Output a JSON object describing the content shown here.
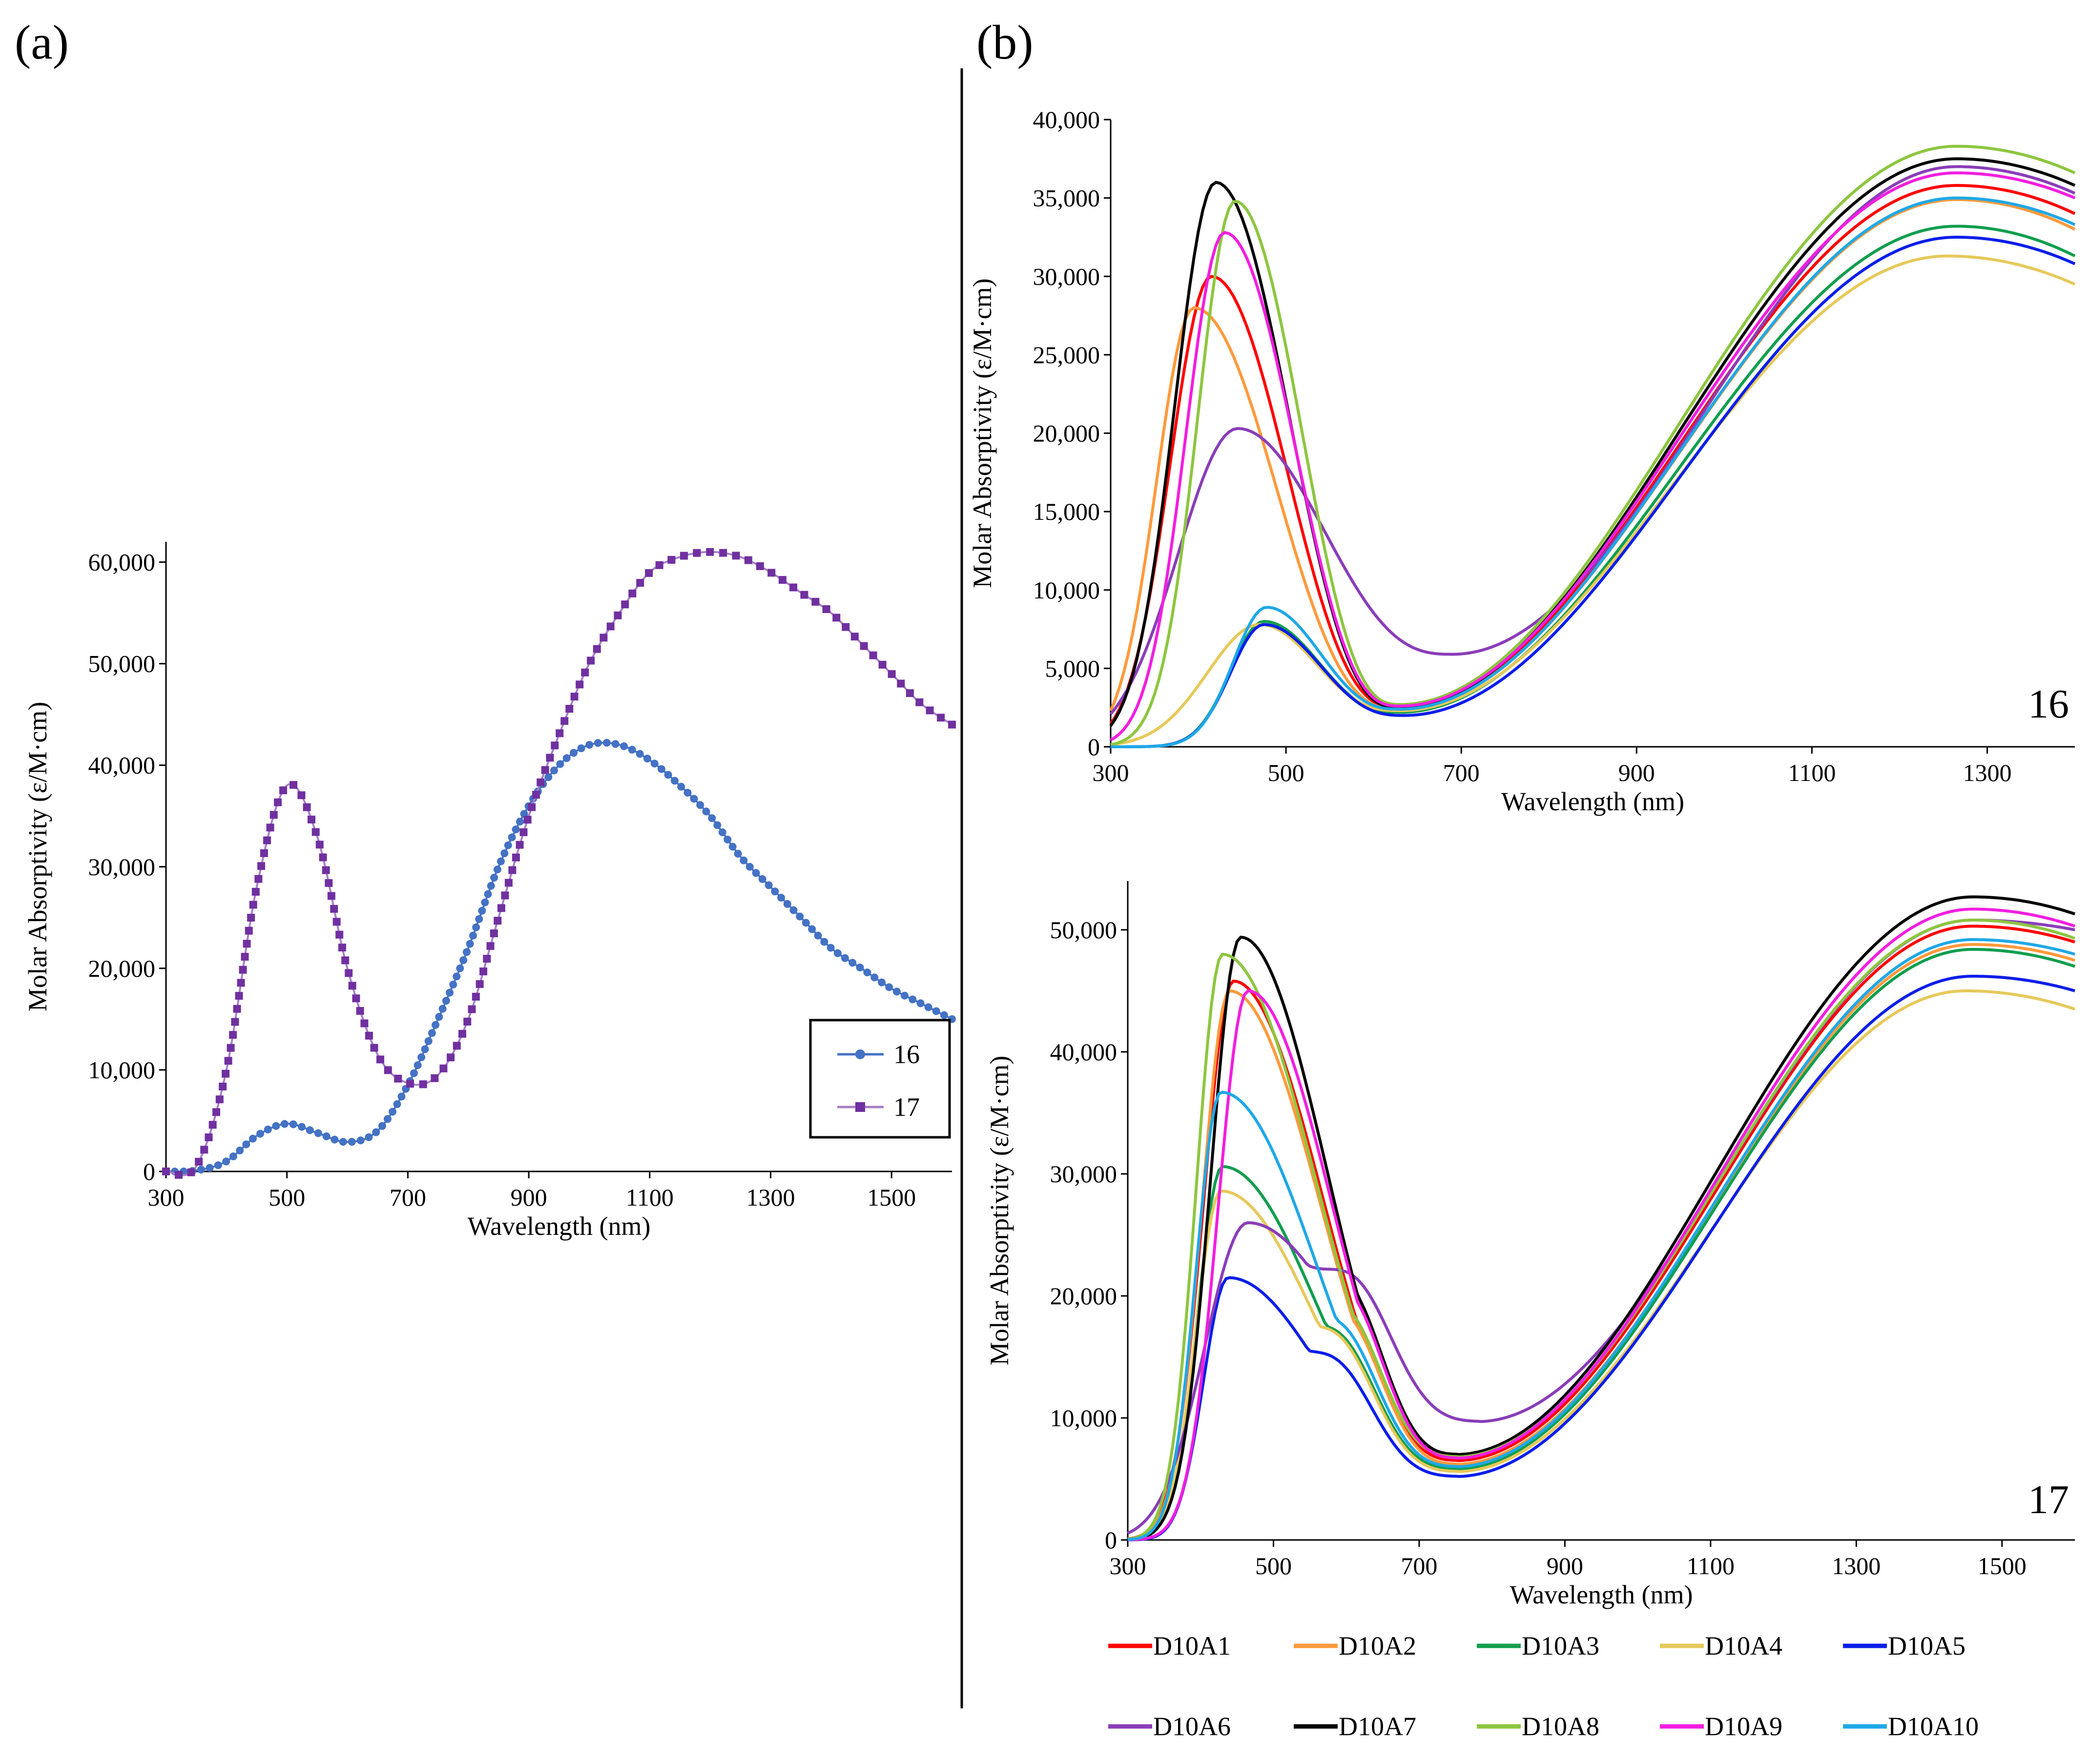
{
  "panel_labels": {
    "a": "(a)",
    "b": "(b)"
  },
  "colors": {
    "s16": "#4472C4",
    "s17": "#7030A0",
    "s17_line": "#A77FC6",
    "D10A1": "#FF0000",
    "D10A2": "#FF9A3C",
    "D10A3": "#119E4E",
    "D10A4": "#E6C95A",
    "D10A5": "#0A1EE8",
    "D10A6": "#8A3DB8",
    "D10A7": "#000000",
    "D10A8": "#8DC63F",
    "D10A9": "#F21EE0",
    "D10A10": "#1EA8E6"
  },
  "chart_data": [
    {
      "id": "a",
      "type": "line",
      "title": "",
      "xlabel": "Wavelength (nm)",
      "ylabel": "Molar Absorptivity (ε/M·cm)",
      "xlim": [
        300,
        1600
      ],
      "ylim": [
        0,
        62000
      ],
      "xticks": [
        300,
        500,
        700,
        900,
        1100,
        1300,
        1500
      ],
      "yticks": [
        0,
        10000,
        20000,
        30000,
        40000,
        50000,
        60000
      ],
      "xtick_labels": [
        "300",
        "500",
        "700",
        "900",
        "1100",
        "1300",
        "1500"
      ],
      "ytick_labels": [
        "0",
        "10,000",
        "20,000",
        "30,000",
        "40,000",
        "50,000",
        "60,000"
      ],
      "legend_position": "right",
      "legend": [
        "16",
        "17"
      ],
      "series": [
        {
          "name": "16",
          "marker": "circle",
          "color": "#4472C4",
          "x": [
            300,
            350,
            400,
            450,
            500,
            550,
            600,
            650,
            700,
            750,
            800,
            850,
            900,
            950,
            1000,
            1050,
            1100,
            1150,
            1200,
            1250,
            1300,
            1350,
            1400,
            1450,
            1500,
            1550,
            1600
          ],
          "y": [
            0,
            100,
            1000,
            3500,
            4700,
            3800,
            2900,
            4000,
            8500,
            15000,
            22000,
            30000,
            36000,
            40000,
            42000,
            42000,
            40500,
            38000,
            35000,
            31000,
            28000,
            25000,
            22000,
            20000,
            18000,
            16500,
            15000
          ]
        },
        {
          "name": "17",
          "marker": "square",
          "color": "#7030A0",
          "x": [
            300,
            350,
            400,
            450,
            500,
            550,
            600,
            650,
            700,
            750,
            800,
            850,
            900,
            950,
            1000,
            1050,
            1100,
            1150,
            1200,
            1250,
            1300,
            1350,
            1400,
            1450,
            1500,
            1550,
            1600
          ],
          "y": [
            0,
            500,
            10000,
            28000,
            38000,
            33000,
            20000,
            11500,
            8700,
            9500,
            15000,
            25000,
            35000,
            43000,
            50000,
            55000,
            59000,
            60500,
            61000,
            60500,
            59000,
            57000,
            55000,
            52000,
            49000,
            46000,
            44000
          ]
        }
      ]
    },
    {
      "id": "b16",
      "type": "line",
      "title": "",
      "tag": "16",
      "xlabel": "Wavelength (nm)",
      "ylabel": "Molar Absorptivity (ε/M·cm)",
      "xlim": [
        300,
        1400
      ],
      "ylim": [
        0,
        40000
      ],
      "xticks": [
        300,
        500,
        700,
        900,
        1100,
        1300
      ],
      "yticks": [
        0,
        5000,
        10000,
        15000,
        20000,
        25000,
        30000,
        35000,
        40000
      ],
      "xtick_labels": [
        "300",
        "500",
        "700",
        "900",
        "1100",
        "1300"
      ],
      "ytick_labels": [
        "0",
        "5,000",
        "10,000",
        "15,000",
        "20,000",
        "25,000",
        "30,000",
        "35,000",
        "40,000"
      ],
      "series": [
        {
          "name": "D10A1",
          "color": "#FF0000",
          "peak1": [
            415,
            30000
          ],
          "valley": [
            630,
            2500
          ],
          "peak2": [
            1265,
            35800
          ],
          "end_y": 34000,
          "sigma": 55
        },
        {
          "name": "D10A2",
          "color": "#FF9A3C",
          "peak1": [
            395,
            28000
          ],
          "valley": [
            630,
            2400
          ],
          "peak2": [
            1265,
            34900
          ],
          "end_y": 33000,
          "sigma": 50
        },
        {
          "name": "D10A3",
          "color": "#119E4E",
          "peak1": [
            475,
            8000
          ],
          "valley": [
            630,
            2200
          ],
          "peak2": [
            1265,
            33200
          ],
          "end_y": 31300,
          "sigma": 45
        },
        {
          "name": "D10A4",
          "color": "#E6C95A",
          "peak1": [
            470,
            7800
          ],
          "valley": [
            630,
            2300
          ],
          "peak2": [
            1255,
            31300
          ],
          "end_y": 29500,
          "sigma": 70
        },
        {
          "name": "D10A5",
          "color": "#0A1EE8",
          "peak1": [
            475,
            7800
          ],
          "valley": [
            635,
            2000
          ],
          "peak2": [
            1265,
            32500
          ],
          "end_y": 30800,
          "sigma": 45
        },
        {
          "name": "D10A6",
          "color": "#8A3DB8",
          "peak1": [
            445,
            20300
          ],
          "valley": [
            690,
            5900
          ],
          "peak2": [
            1265,
            37000
          ],
          "end_y": 35300,
          "sigma": 80
        },
        {
          "name": "D10A7",
          "color": "#000000",
          "peak1": [
            420,
            36000
          ],
          "valley": [
            630,
            2500
          ],
          "peak2": [
            1265,
            37500
          ],
          "end_y": 35800,
          "sigma": 55
        },
        {
          "name": "D10A8",
          "color": "#8DC63F",
          "peak1": [
            442,
            34800
          ],
          "valley": [
            630,
            2700
          ],
          "peak2": [
            1265,
            38300
          ],
          "end_y": 36600,
          "sigma": 50
        },
        {
          "name": "D10A9",
          "color": "#F21EE0",
          "peak1": [
            430,
            32800
          ],
          "valley": [
            630,
            2600
          ],
          "peak2": [
            1265,
            36600
          ],
          "end_y": 35000,
          "sigma": 52
        },
        {
          "name": "D10A10",
          "color": "#1EA8E6",
          "peak1": [
            478,
            8900
          ],
          "valley": [
            630,
            2400
          ],
          "peak2": [
            1265,
            35000
          ],
          "end_y": 33300,
          "sigma": 45
        }
      ]
    },
    {
      "id": "b17",
      "type": "line",
      "title": "",
      "tag": "17",
      "xlabel": "Wavelength (nm)",
      "ylabel": "Molar Absorptivity (ε/M·cm)",
      "xlim": [
        300,
        1600
      ],
      "ylim": [
        0,
        54000
      ],
      "xticks": [
        300,
        500,
        700,
        900,
        1100,
        1300,
        1500
      ],
      "yticks": [
        0,
        10000,
        20000,
        30000,
        40000,
        50000
      ],
      "xtick_labels": [
        "300",
        "500",
        "700",
        "900",
        "1100",
        "1300",
        "1500"
      ],
      "ytick_labels": [
        "0",
        "10,000",
        "20,000",
        "30,000",
        "40,000",
        "50,000"
      ],
      "series": [
        {
          "name": "D10A1",
          "color": "#FF0000",
          "peak1": [
            445,
            45800
          ],
          "shoulder": [
            560,
            18000
          ],
          "valley": [
            750,
            6500
          ],
          "peak2": [
            1460,
            50300
          ],
          "end_y": 49000,
          "sigma": 48
        },
        {
          "name": "D10A2",
          "color": "#FF9A3C",
          "peak1": [
            440,
            45000
          ],
          "shoulder": [
            560,
            18000
          ],
          "valley": [
            750,
            6200
          ],
          "peak2": [
            1460,
            48800
          ],
          "end_y": 47500,
          "sigma": 45
        },
        {
          "name": "D10A3",
          "color": "#119E4E",
          "peak1": [
            430,
            30600
          ],
          "shoulder": [
            560,
            17500
          ],
          "valley": [
            750,
            5800
          ],
          "peak2": [
            1460,
            48400
          ],
          "end_y": 47000,
          "sigma": 40
        },
        {
          "name": "D10A4",
          "color": "#E6C95A",
          "peak1": [
            428,
            28600
          ],
          "shoulder": [
            560,
            17500
          ],
          "valley": [
            750,
            5600
          ],
          "peak2": [
            1450,
            45000
          ],
          "end_y": 43500,
          "sigma": 40
        },
        {
          "name": "D10A5",
          "color": "#0A1EE8",
          "peak1": [
            438,
            21500
          ],
          "shoulder": [
            560,
            15500
          ],
          "valley": [
            750,
            5200
          ],
          "peak2": [
            1460,
            46200
          ],
          "end_y": 45000,
          "sigma": 40
        },
        {
          "name": "D10A6",
          "color": "#8A3DB8",
          "peak1": [
            465,
            26000
          ],
          "shoulder": [
            590,
            22500
          ],
          "valley": [
            780,
            9700
          ],
          "peak2": [
            1460,
            50800
          ],
          "end_y": 50000,
          "sigma": 70
        },
        {
          "name": "D10A7",
          "color": "#000000",
          "peak1": [
            455,
            49400
          ],
          "shoulder": [
            560,
            20000
          ],
          "valley": [
            750,
            7000
          ],
          "peak2": [
            1460,
            52700
          ],
          "end_y": 51300,
          "sigma": 48
        },
        {
          "name": "D10A8",
          "color": "#8DC63F",
          "peak1": [
            430,
            48000
          ],
          "shoulder": [
            560,
            18500
          ],
          "valley": [
            750,
            6800
          ],
          "peak2": [
            1460,
            50800
          ],
          "end_y": 49300,
          "sigma": 42
        },
        {
          "name": "D10A9",
          "color": "#F21EE0",
          "peak1": [
            465,
            45000
          ],
          "shoulder": [
            560,
            19500
          ],
          "valley": [
            750,
            6700
          ],
          "peak2": [
            1460,
            51700
          ],
          "end_y": 50300,
          "sigma": 48
        },
        {
          "name": "D10A10",
          "color": "#1EA8E6",
          "peak1": [
            428,
            36700
          ],
          "shoulder": [
            560,
            18000
          ],
          "valley": [
            750,
            6000
          ],
          "peak2": [
            1460,
            49200
          ],
          "end_y": 48000,
          "sigma": 40
        }
      ]
    }
  ],
  "legend_b": {
    "rows": [
      [
        "D10A1",
        "D10A2",
        "D10A3",
        "D10A4",
        "D10A5"
      ],
      [
        "D10A6",
        "D10A7",
        "D10A8",
        "D10A9",
        "D10A10"
      ]
    ]
  }
}
